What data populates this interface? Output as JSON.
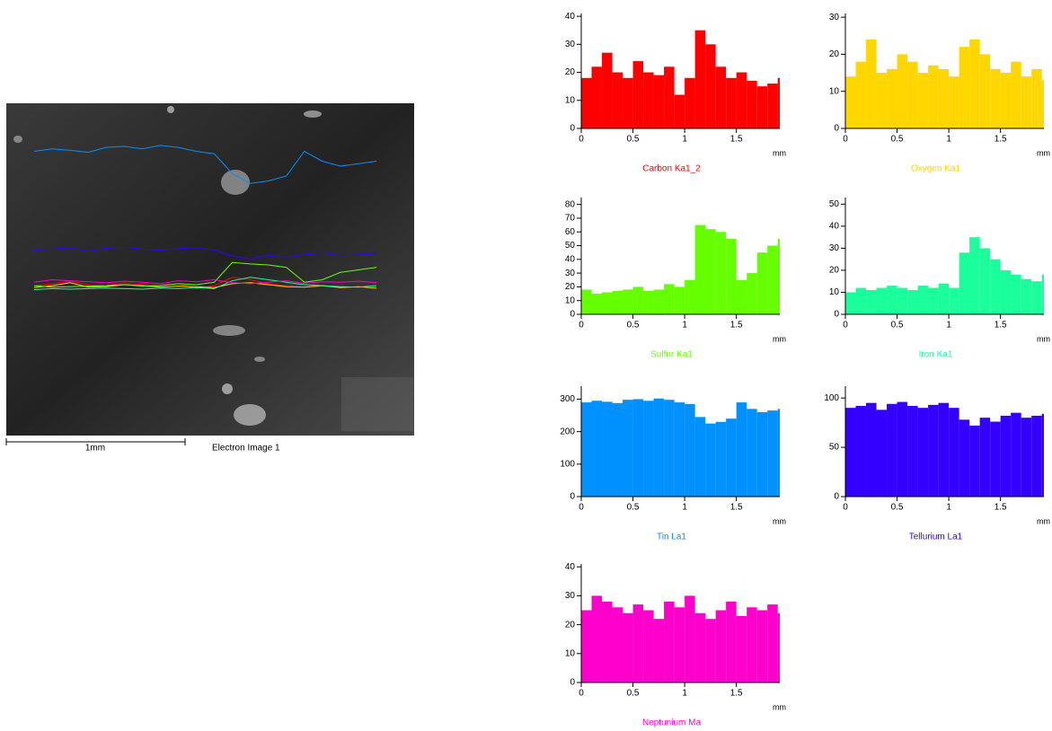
{
  "image": {
    "scale_label": "1mm",
    "caption": "Electron Image 1"
  },
  "chart_data": [
    {
      "type": "bar",
      "title": "Carbon Ka1_2",
      "color": "#ff0000",
      "x_label": "mm",
      "x": [
        0,
        0.1,
        0.2,
        0.3,
        0.4,
        0.5,
        0.6,
        0.7,
        0.8,
        0.9,
        1,
        1.1,
        1.2,
        1.3,
        1.4,
        1.5,
        1.6,
        1.7,
        1.8,
        1.9
      ],
      "values": [
        18,
        22,
        27,
        20,
        18,
        24,
        20,
        19,
        22,
        12,
        18,
        35,
        30,
        22,
        18,
        20,
        17,
        15,
        16,
        18
      ],
      "xlim": [
        0,
        1.92
      ],
      "xticks": [
        0,
        0.5,
        1,
        1.5
      ],
      "ylim": [
        0,
        41
      ],
      "yticks": [
        0,
        10,
        20,
        30,
        40
      ]
    },
    {
      "type": "bar",
      "title": "Oxygen Ka1",
      "color": "#ffd700",
      "x_label": "mm",
      "x": [
        0,
        0.1,
        0.2,
        0.3,
        0.4,
        0.5,
        0.6,
        0.7,
        0.8,
        0.9,
        1,
        1.1,
        1.2,
        1.3,
        1.4,
        1.5,
        1.6,
        1.7,
        1.8,
        1.9
      ],
      "values": [
        14,
        18,
        24,
        15,
        16,
        20,
        18,
        15,
        17,
        16,
        14,
        22,
        24,
        20,
        16,
        15,
        18,
        14,
        16,
        13
      ],
      "xlim": [
        0,
        1.92
      ],
      "xticks": [
        0,
        0.5,
        1,
        1.5
      ],
      "ylim": [
        0,
        31
      ],
      "yticks": [
        0,
        10,
        20,
        30
      ]
    },
    {
      "type": "bar",
      "title": "Sulfur Ka1",
      "color": "#66ff00",
      "x_label": "mm",
      "x": [
        0,
        0.1,
        0.2,
        0.3,
        0.4,
        0.5,
        0.6,
        0.7,
        0.8,
        0.9,
        1,
        1.1,
        1.2,
        1.3,
        1.4,
        1.5,
        1.6,
        1.7,
        1.8,
        1.9
      ],
      "values": [
        18,
        15,
        16,
        17,
        18,
        20,
        17,
        18,
        22,
        20,
        25,
        65,
        62,
        60,
        55,
        25,
        30,
        45,
        50,
        55
      ],
      "xlim": [
        0,
        1.92
      ],
      "xticks": [
        0,
        0.5,
        1,
        1.5
      ],
      "ylim": [
        0,
        85
      ],
      "yticks": [
        0,
        10,
        20,
        30,
        40,
        50,
        60,
        70,
        80
      ]
    },
    {
      "type": "bar",
      "title": "Iron Ka1",
      "color": "#1aff9c",
      "x_label": "mm",
      "x": [
        0,
        0.1,
        0.2,
        0.3,
        0.4,
        0.5,
        0.6,
        0.7,
        0.8,
        0.9,
        1,
        1.1,
        1.2,
        1.3,
        1.4,
        1.5,
        1.6,
        1.7,
        1.8,
        1.9
      ],
      "values": [
        10,
        12,
        11,
        12,
        13,
        12,
        11,
        13,
        12,
        14,
        12,
        28,
        35,
        30,
        25,
        20,
        18,
        16,
        15,
        18
      ],
      "xlim": [
        0,
        1.92
      ],
      "xticks": [
        0,
        0.5,
        1,
        1.5
      ],
      "ylim": [
        0,
        53
      ],
      "yticks": [
        0,
        10,
        20,
        30,
        40,
        50
      ]
    },
    {
      "type": "bar",
      "title": "Tin La1",
      "color": "#0090ff",
      "x_label": "mm",
      "x": [
        0,
        0.1,
        0.2,
        0.3,
        0.4,
        0.5,
        0.6,
        0.7,
        0.8,
        0.9,
        1,
        1.1,
        1.2,
        1.3,
        1.4,
        1.5,
        1.6,
        1.7,
        1.8,
        1.9
      ],
      "values": [
        290,
        295,
        292,
        288,
        298,
        300,
        295,
        302,
        298,
        290,
        285,
        245,
        225,
        230,
        240,
        290,
        270,
        260,
        265,
        270
      ],
      "xlim": [
        0,
        1.92
      ],
      "xticks": [
        0,
        0.5,
        1,
        1.5
      ],
      "ylim": [
        0,
        340
      ],
      "yticks": [
        0,
        100,
        200,
        300
      ]
    },
    {
      "type": "bar",
      "title": "Tellurium La1",
      "color": "#3300ff",
      "x_label": "mm",
      "x": [
        0,
        0.1,
        0.2,
        0.3,
        0.4,
        0.5,
        0.6,
        0.7,
        0.8,
        0.9,
        1,
        1.1,
        1.2,
        1.3,
        1.4,
        1.5,
        1.6,
        1.7,
        1.8,
        1.9
      ],
      "values": [
        90,
        92,
        95,
        88,
        94,
        96,
        92,
        90,
        93,
        95,
        90,
        78,
        72,
        80,
        76,
        82,
        85,
        80,
        82,
        84
      ],
      "xlim": [
        0,
        1.92
      ],
      "xticks": [
        0,
        0.5,
        1,
        1.5
      ],
      "ylim": [
        0,
        112
      ],
      "yticks": [
        0,
        50,
        100
      ]
    },
    {
      "type": "bar",
      "title": "Neptunium Ma",
      "color": "#ff00cc",
      "x_label": "mm",
      "x": [
        0,
        0.1,
        0.2,
        0.3,
        0.4,
        0.5,
        0.6,
        0.7,
        0.8,
        0.9,
        1,
        1.1,
        1.2,
        1.3,
        1.4,
        1.5,
        1.6,
        1.7,
        1.8,
        1.9
      ],
      "values": [
        25,
        30,
        28,
        26,
        24,
        27,
        25,
        22,
        28,
        26,
        30,
        24,
        22,
        25,
        28,
        23,
        26,
        25,
        27,
        24
      ],
      "xlim": [
        0,
        1.92
      ],
      "xticks": [
        0,
        0.5,
        1,
        1.5
      ],
      "ylim": [
        0,
        41
      ],
      "yticks": [
        0,
        10,
        20,
        30,
        40
      ]
    }
  ]
}
